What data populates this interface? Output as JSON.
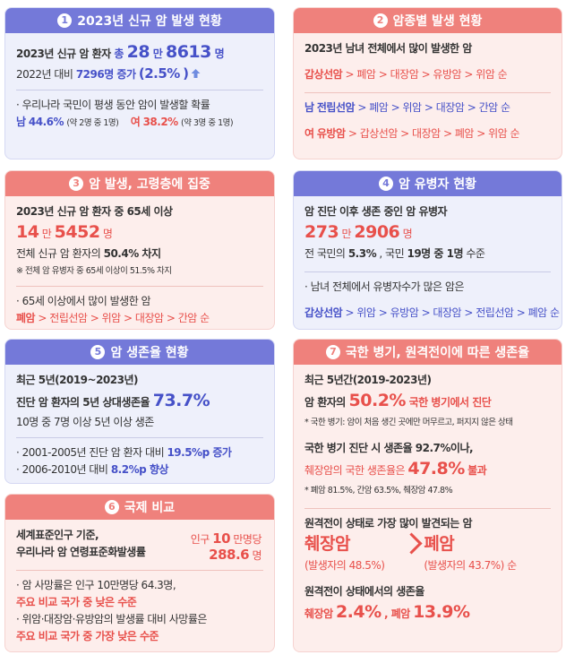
{
  "cards": [
    {
      "number": "1",
      "title": "2023년 신규 암 발생 현황",
      "lines": [
        [
          "2023년 신규 암 환자",
          "총",
          "28",
          "만",
          "8613",
          "명"
        ],
        [
          "2022년 대비",
          "7296명 증가",
          "(2.5%",
          ")"
        ],
        [
          "· 우리나라 국민이 평생 동안 암이 발생할 확률"
        ],
        [
          "남",
          "44.6%",
          "(약 2명 중 1명)",
          "여",
          "38.2%",
          "(약 3명 중 1명)"
        ]
      ]
    },
    {
      "number": "2",
      "title": "암종별 발생 현황",
      "lines": [
        [
          "2023년 남녀 전체에서 많이 발생한 암"
        ],
        [
          "갑상선암",
          "> 폐암 > 대장암 > 유방암 > 위암 순"
        ],
        [
          "남",
          "전립선암",
          "> 폐암 > 위암 > 대장암 > 간암 순"
        ],
        [
          "여",
          "유방암",
          "> 갑상선암 > 대장암 > 폐암 > 위암 순"
        ]
      ]
    },
    {
      "number": "3",
      "title": "암 발생, 고령층에 집중",
      "lines": [
        [
          "2023년 신규 암 환자 중 65세 이상"
        ],
        [
          "14",
          "만",
          "5452",
          "명"
        ],
        [
          "전체 신규 암 환자의",
          "50.4% 차지"
        ],
        [
          "※ 전체 암 유병자 중 65세 이상이 51.5% 차지"
        ],
        [
          "· 65세 이상에서 많이 발생한 암"
        ],
        [
          "폐암",
          "> 전립선암 > 위암 > 대장암 > 간암 순"
        ]
      ]
    },
    {
      "number": "4",
      "title": "암 유병자 현황",
      "lines": [
        [
          "암 진단 이후 생존 중인 암 유병자"
        ],
        [
          "273",
          "만",
          "2906",
          "명"
        ],
        [
          "전 국민의",
          "5.3%",
          ", 국민",
          "19명 중 1명",
          "수준"
        ],
        [
          "· 남녀 전체에서 유병자수가 많은 암은"
        ],
        [
          "갑상선암",
          "> 위암 > 유방암 > 대장암 > 전립선암 > 폐암 순"
        ]
      ]
    },
    {
      "number": "5",
      "title": "암 생존율 현황",
      "lines": [
        [
          "최근 5년(2019~2023년)"
        ],
        [
          "진단 암 환자의 5년 상대생존율",
          "73.7%"
        ],
        [
          "10명 중 7명 이상 5년 이상 생존"
        ],
        [
          "· 2001-2005년 진단 암 환자 대비",
          "19.5%p 증가"
        ],
        [
          "· 2006-2010년 대비",
          "8.2%p 향상"
        ]
      ]
    },
    {
      "number": "6",
      "title": "국제 비교",
      "lines": [
        [
          "세계표준인구 기준,"
        ],
        [
          "우리나라 암 연령표준화발생률"
        ],
        [
          "인구",
          "10",
          "만명당"
        ],
        [
          "288.6",
          "명"
        ],
        [
          "· 암 사망률은 인구 10만명당 64.3명,"
        ],
        [
          "주요 비교 국가 중 낮은 수준"
        ],
        [
          "· 위암·대장암·유방암의 발생률 대비 사망률은"
        ],
        [
          "주요 비교 국가 중 가장 낮은 수준"
        ]
      ]
    },
    {
      "number": "7",
      "title": "국한 병기, 원격전이에 따른 생존율",
      "lines": [
        [
          "최근 5년간(2019-2023년)"
        ],
        [
          "암 환자의",
          "50.2%",
          "국한 병기에서 진단"
        ],
        [
          "* 국한 병기: 암이 처음 생긴 곳에만 머무르고, 퍼지지 않은 상태"
        ],
        [
          "국한 병기 진단 시 생존율 92.7%이나,"
        ],
        [
          "췌장암의 국한 생존율은",
          "47.8%",
          "불과"
        ],
        [
          "* 폐암 81.5%, 간암 63.5%, 췌장암 47.8%"
        ],
        [
          "원격전이 상태로 가장 많이 발견되는 암"
        ],
        [
          "췌장암",
          "폐암"
        ],
        [
          "(발생자의 48.5%)",
          "(발생자의 43.7%) 순"
        ],
        [
          "원격전이 상태에서의 생존율"
        ],
        [
          "췌장암",
          "2.4%",
          ", 폐암",
          "13.9%"
        ]
      ]
    }
  ]
}
